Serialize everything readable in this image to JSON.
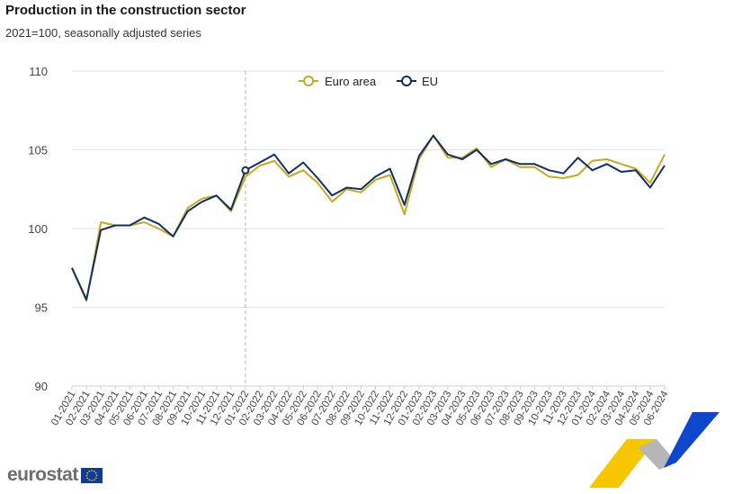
{
  "header": {
    "title": "Production in the construction sector",
    "subtitle": "2021=100, seasonally adjusted series"
  },
  "brand": {
    "name": "eurostat"
  },
  "colors": {
    "euro_area": "#c8a81e",
    "eu": "#0e2f62",
    "grid": "#e2e2e2",
    "marker_line": "#b0b0b0"
  },
  "chart_data": {
    "type": "line",
    "title": "Production in the construction sector",
    "subtitle": "2021=100, seasonally adjusted series",
    "ylim": [
      90,
      110
    ],
    "yticks": [
      90,
      95,
      100,
      105,
      110
    ],
    "grid": true,
    "legend": "top-center",
    "highlight_x": "01-2022",
    "x": [
      "01-2021",
      "02-2021",
      "03-2021",
      "04-2021",
      "05-2021",
      "06-2021",
      "07-2021",
      "08-2021",
      "09-2021",
      "10-2021",
      "11-2021",
      "12-2021",
      "01-2022",
      "02-2022",
      "03-2022",
      "04-2022",
      "05-2022",
      "06-2022",
      "07-2022",
      "08-2022",
      "09-2022",
      "10-2022",
      "11-2022",
      "12-2022",
      "01-2023",
      "02-2023",
      "03-2023",
      "04-2023",
      "05-2023",
      "06-2023",
      "07-2023",
      "08-2023",
      "09-2023",
      "10-2023",
      "11-2023",
      "12-2023",
      "01-2024",
      "02-2024",
      "03-2024",
      "04-2024",
      "05-2024",
      "06-2024"
    ],
    "series": [
      {
        "name": "Euro area",
        "values": [
          97.5,
          95.4,
          100.4,
          100.2,
          100.2,
          100.4,
          100.0,
          99.5,
          101.3,
          101.9,
          102.1,
          101.1,
          103.3,
          104.0,
          104.3,
          103.3,
          103.7,
          102.9,
          101.7,
          102.5,
          102.3,
          103.1,
          103.4,
          100.9,
          104.4,
          105.9,
          104.5,
          104.5,
          105.1,
          103.9,
          104.4,
          103.9,
          103.9,
          103.3,
          103.2,
          103.4,
          104.3,
          104.4,
          104.1,
          103.8,
          102.9,
          104.7
        ]
      },
      {
        "name": "EU",
        "values": [
          97.5,
          95.5,
          99.9,
          100.2,
          100.2,
          100.7,
          100.3,
          99.5,
          101.1,
          101.7,
          102.1,
          101.2,
          103.7,
          104.2,
          104.7,
          103.5,
          104.2,
          103.2,
          102.1,
          102.6,
          102.5,
          103.3,
          103.8,
          101.5,
          104.6,
          105.9,
          104.7,
          104.4,
          105.0,
          104.1,
          104.4,
          104.1,
          104.1,
          103.7,
          103.5,
          104.5,
          103.7,
          104.1,
          103.6,
          103.7,
          102.6,
          104.0
        ]
      }
    ]
  }
}
